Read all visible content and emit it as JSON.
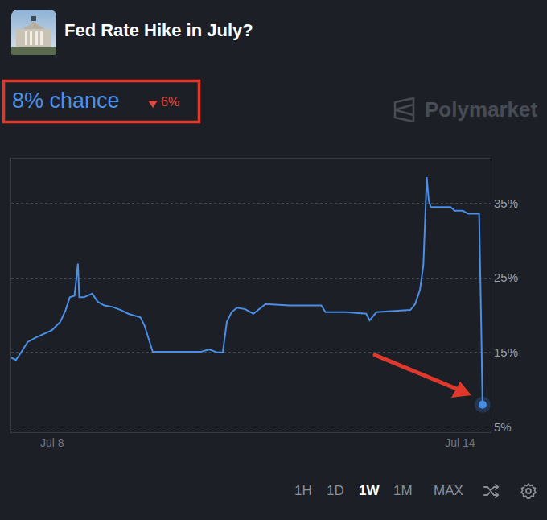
{
  "header": {
    "title": "Fed Rate Hike in July?",
    "chance": "8% chance",
    "change": {
      "direction": "down",
      "text": "6%"
    },
    "watermark": "Polymarket"
  },
  "chart_data": {
    "type": "line",
    "color": "#4a8fe7",
    "grid": true,
    "x": [
      7.4,
      7.47,
      7.53,
      7.59,
      7.64,
      7.76,
      7.88,
      8.0,
      8.12,
      8.2,
      8.26,
      8.33,
      8.38,
      8.4,
      8.47,
      8.59,
      8.67,
      8.77,
      8.89,
      9.01,
      9.12,
      9.3,
      9.36,
      9.44,
      9.48,
      9.6,
      10.19,
      10.31,
      10.43,
      10.51,
      10.57,
      10.64,
      10.72,
      10.84,
      10.96,
      11.14,
      11.49,
      11.96,
      12.02,
      12.32,
      12.62,
      12.67,
      12.77,
      13.27,
      13.34,
      13.41,
      13.46,
      13.51,
      13.54,
      13.57,
      13.86,
      13.92,
      14.04,
      14.12,
      14.28,
      14.31,
      14.33
    ],
    "values": [
      14.3,
      14.0,
      14.8,
      15.7,
      16.4,
      17.0,
      17.5,
      18.0,
      19.1,
      20.7,
      22.4,
      22.6,
      26.9,
      22.4,
      22.4,
      22.9,
      21.8,
      21.3,
      21.1,
      20.7,
      20.2,
      19.7,
      18.6,
      16.4,
      15.1,
      15.1,
      15.1,
      15.4,
      15.0,
      15.0,
      19.1,
      20.4,
      21.0,
      20.8,
      20.2,
      21.5,
      21.3,
      21.3,
      20.4,
      20.4,
      20.2,
      19.3,
      20.4,
      20.7,
      21.5,
      23.4,
      26.7,
      38.5,
      35.3,
      34.5,
      34.5,
      34.0,
      34.0,
      33.6,
      33.6,
      19.1,
      8.0
    ],
    "xlim": [
      7.4,
      14.45
    ],
    "xticks": [
      {
        "value": 8,
        "label": "Jul 8"
      },
      {
        "value": 14,
        "label": "Jul 14"
      }
    ],
    "ylim": [
      4.3,
      41
    ],
    "yticks": [
      {
        "value": 5,
        "label": "5%"
      },
      {
        "value": 15,
        "label": "15%"
      },
      {
        "value": 25,
        "label": "25%"
      },
      {
        "value": 35,
        "label": "35%"
      }
    ]
  },
  "controls": {
    "buttons": [
      "1H",
      "1D",
      "1W",
      "1M",
      "MAX"
    ],
    "active": "1W"
  }
}
